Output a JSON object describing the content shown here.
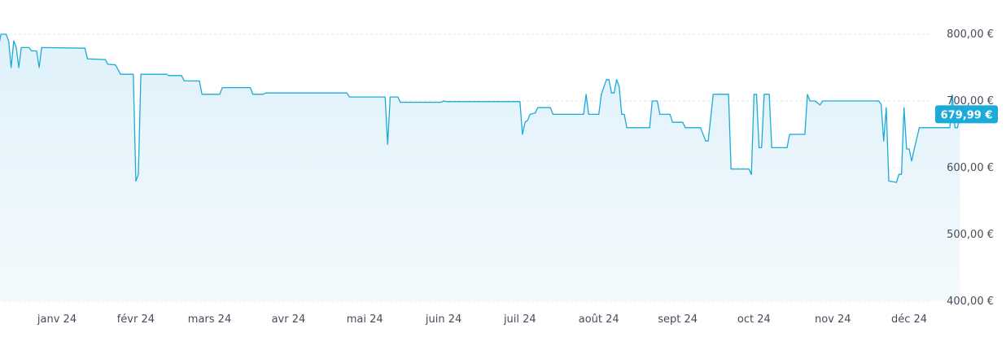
{
  "chart_data": {
    "type": "area",
    "title": "",
    "xlabel": "",
    "ylabel": "",
    "ylim": [
      400,
      800
    ],
    "y_ticks": [
      {
        "value": 800,
        "label": "800,00 €"
      },
      {
        "value": 700,
        "label": "700,00 €"
      },
      {
        "value": 600,
        "label": "600,00 €"
      },
      {
        "value": 500,
        "label": "500,00 €"
      },
      {
        "value": 400,
        "label": "400,00 €"
      }
    ],
    "x_ticks": [
      {
        "date": "2024-01-01",
        "label": "janv 24"
      },
      {
        "date": "2024-02-01",
        "label": "févr 24"
      },
      {
        "date": "2024-03-01",
        "label": "mars 24"
      },
      {
        "date": "2024-04-01",
        "label": "avr 24"
      },
      {
        "date": "2024-05-01",
        "label": "mai 24"
      },
      {
        "date": "2024-06-01",
        "label": "juin 24"
      },
      {
        "date": "2024-07-01",
        "label": "juil 24"
      },
      {
        "date": "2024-08-01",
        "label": "août 24"
      },
      {
        "date": "2024-09-01",
        "label": "sept 24"
      },
      {
        "date": "2024-10-01",
        "label": "oct 24"
      },
      {
        "date": "2024-11-01",
        "label": "nov 24"
      },
      {
        "date": "2024-12-01",
        "label": "déc 24"
      }
    ],
    "current_value": 679.99,
    "current_label": "679,99 €",
    "grid": true,
    "line_color": "#1aabd8",
    "fill_color": "#e6f4fb",
    "badge_color": "#1aabd8",
    "series": [
      {
        "points": [
          [
            "2023-12-09",
            780
          ],
          [
            "2023-12-10",
            800
          ],
          [
            "2023-12-12",
            800
          ],
          [
            "2023-12-13",
            790
          ],
          [
            "2023-12-14",
            750
          ],
          [
            "2023-12-15",
            790
          ],
          [
            "2023-12-16",
            780
          ],
          [
            "2023-12-17",
            750
          ],
          [
            "2023-12-18",
            780
          ],
          [
            "2023-12-21",
            780
          ],
          [
            "2023-12-22",
            775
          ],
          [
            "2023-12-24",
            775
          ],
          [
            "2023-12-25",
            750
          ],
          [
            "2023-12-26",
            780
          ],
          [
            "2024-01-12",
            779
          ],
          [
            "2024-01-13",
            763
          ],
          [
            "2024-01-20",
            762
          ],
          [
            "2024-01-21",
            755
          ],
          [
            "2024-01-24",
            754
          ],
          [
            "2024-01-26",
            740
          ],
          [
            "2024-01-31",
            740
          ],
          [
            "2024-02-01",
            580
          ],
          [
            "2024-02-02",
            590
          ],
          [
            "2024-02-03",
            740
          ],
          [
            "2024-02-13",
            740
          ],
          [
            "2024-02-14",
            738
          ],
          [
            "2024-02-19",
            738
          ],
          [
            "2024-02-20",
            730
          ],
          [
            "2024-02-26",
            730
          ],
          [
            "2024-02-27",
            710
          ],
          [
            "2024-03-05",
            710
          ],
          [
            "2024-03-06",
            720
          ],
          [
            "2024-03-17",
            720
          ],
          [
            "2024-03-18",
            710
          ],
          [
            "2024-03-22",
            710
          ],
          [
            "2024-03-23",
            712
          ],
          [
            "2024-04-24",
            712
          ],
          [
            "2024-04-25",
            706
          ],
          [
            "2024-05-09",
            706
          ],
          [
            "2024-05-10",
            635
          ],
          [
            "2024-05-11",
            706
          ],
          [
            "2024-05-14",
            706
          ],
          [
            "2024-05-15",
            698
          ],
          [
            "2024-05-31",
            698
          ],
          [
            "2024-06-01",
            700
          ],
          [
            "2024-06-02",
            699
          ],
          [
            "2024-07-01",
            699
          ],
          [
            "2024-07-02",
            650
          ],
          [
            "2024-07-03",
            668
          ],
          [
            "2024-07-04",
            671
          ],
          [
            "2024-07-05",
            680
          ],
          [
            "2024-07-07",
            682
          ],
          [
            "2024-07-08",
            690
          ],
          [
            "2024-07-13",
            690
          ],
          [
            "2024-07-14",
            680
          ],
          [
            "2024-07-26",
            680
          ],
          [
            "2024-07-27",
            710
          ],
          [
            "2024-07-28",
            680
          ],
          [
            "2024-08-01",
            680
          ],
          [
            "2024-08-02",
            710
          ],
          [
            "2024-08-04",
            732
          ],
          [
            "2024-08-05",
            732
          ],
          [
            "2024-08-06",
            712
          ],
          [
            "2024-08-07",
            712
          ],
          [
            "2024-08-08",
            732
          ],
          [
            "2024-08-09",
            722
          ],
          [
            "2024-08-10",
            680
          ],
          [
            "2024-08-11",
            680
          ],
          [
            "2024-08-12",
            660
          ],
          [
            "2024-08-21",
            660
          ],
          [
            "2024-08-22",
            700
          ],
          [
            "2024-08-24",
            700
          ],
          [
            "2024-08-25",
            680
          ],
          [
            "2024-08-29",
            680
          ],
          [
            "2024-08-30",
            668
          ],
          [
            "2024-09-03",
            668
          ],
          [
            "2024-09-04",
            660
          ],
          [
            "2024-09-10",
            660
          ],
          [
            "2024-09-12",
            640
          ],
          [
            "2024-09-13",
            640
          ],
          [
            "2024-09-15",
            710
          ],
          [
            "2024-09-21",
            710
          ],
          [
            "2024-09-22",
            598
          ],
          [
            "2024-09-29",
            598
          ],
          [
            "2024-09-30",
            590
          ],
          [
            "2024-10-01",
            710
          ],
          [
            "2024-10-02",
            710
          ],
          [
            "2024-10-03",
            630
          ],
          [
            "2024-10-04",
            630
          ],
          [
            "2024-10-05",
            710
          ],
          [
            "2024-10-07",
            710
          ],
          [
            "2024-10-08",
            630
          ],
          [
            "2024-10-14",
            630
          ],
          [
            "2024-10-15",
            650
          ],
          [
            "2024-10-21",
            650
          ],
          [
            "2024-10-22",
            710
          ],
          [
            "2024-10-23",
            700
          ],
          [
            "2024-10-25",
            700
          ],
          [
            "2024-10-27",
            694
          ],
          [
            "2024-10-28",
            700
          ],
          [
            "2024-11-19",
            700
          ],
          [
            "2024-11-20",
            695
          ],
          [
            "2024-11-21",
            640
          ],
          [
            "2024-11-22",
            690
          ],
          [
            "2024-11-23",
            580
          ],
          [
            "2024-11-26",
            578
          ],
          [
            "2024-11-27",
            590
          ],
          [
            "2024-11-28",
            590
          ],
          [
            "2024-11-29",
            690
          ],
          [
            "2024-11-30",
            628
          ],
          [
            "2024-12-01",
            628
          ],
          [
            "2024-12-02",
            610
          ],
          [
            "2024-12-03",
            628
          ],
          [
            "2024-12-05",
            660
          ],
          [
            "2024-12-17",
            660
          ],
          [
            "2024-12-18",
            709
          ],
          [
            "2024-12-19",
            660
          ],
          [
            "2024-12-20",
            660
          ],
          [
            "2024-12-21",
            679.99
          ]
        ]
      }
    ]
  }
}
